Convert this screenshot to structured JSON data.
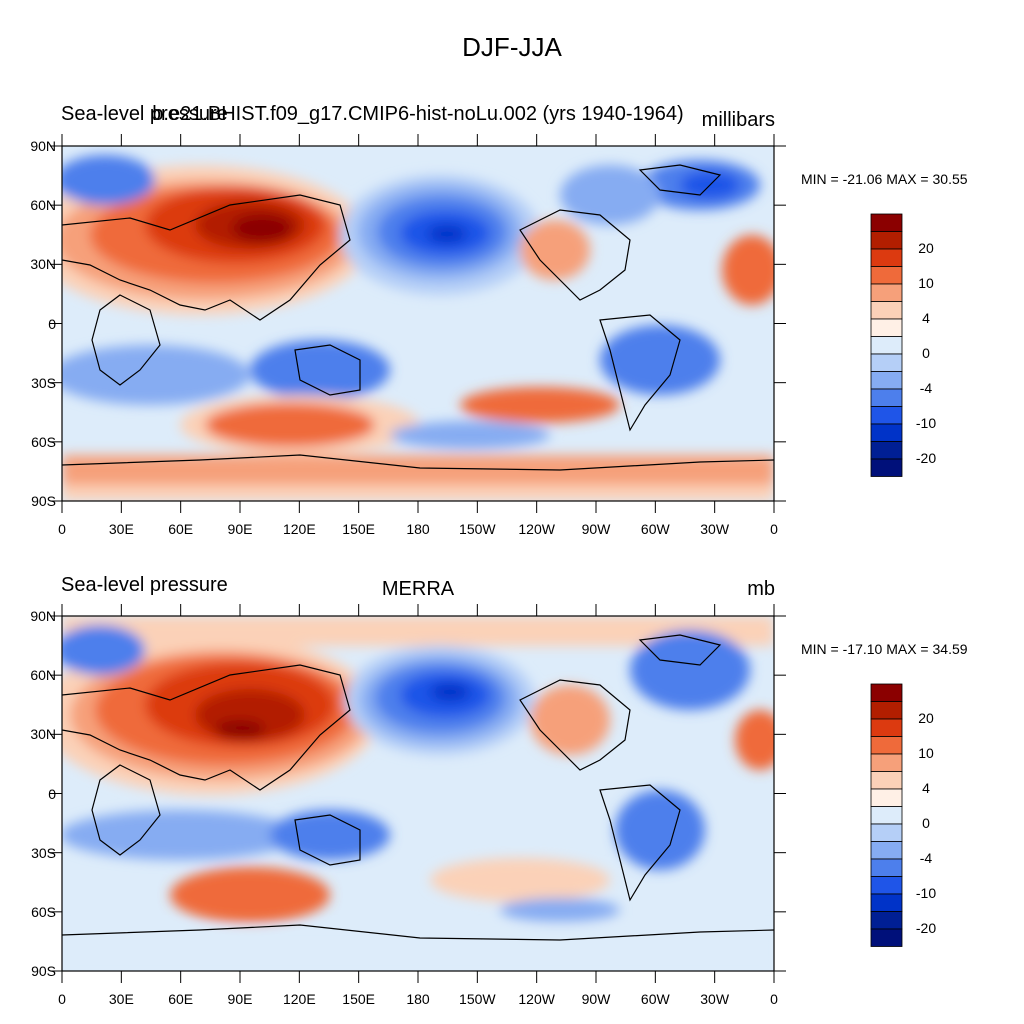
{
  "figure_title": "DJF-JJA",
  "panels": [
    {
      "left_title": "Sea-level pressure",
      "center_title": "b.e21.BHIST.f09_g17.CMIP6-hist-noLu.002 (yrs 1940-1964)",
      "right_title": "millibars",
      "stats": "MIN = -21.06 MAX =  30.55"
    },
    {
      "left_title": "Sea-level pressure",
      "center_title": "MERRA",
      "right_title": "mb",
      "stats": "MIN = -17.10 MAX =  34.59"
    }
  ],
  "lat_labels": [
    "90N",
    "60N",
    "30N",
    "0",
    "30S",
    "60S",
    "90S"
  ],
  "lon_labels": [
    "0",
    "30E",
    "60E",
    "90E",
    "120E",
    "150E",
    "180",
    "150W",
    "120W",
    "90W",
    "60W",
    "30W",
    "0"
  ],
  "colorbar": {
    "labels": [
      "20",
      "10",
      "4",
      "0",
      "-4",
      "-10",
      "-20"
    ],
    "colors": [
      "#8b0000",
      "#b21e00",
      "#dc3a10",
      "#ef6a3a",
      "#f6a07a",
      "#fbd1b8",
      "#fff0e6",
      "#ddecfa",
      "#b5cff7",
      "#86acf2",
      "#4d7fec",
      "#1f55e8",
      "#0033c8",
      "#001f94",
      "#00107a"
    ]
  }
}
